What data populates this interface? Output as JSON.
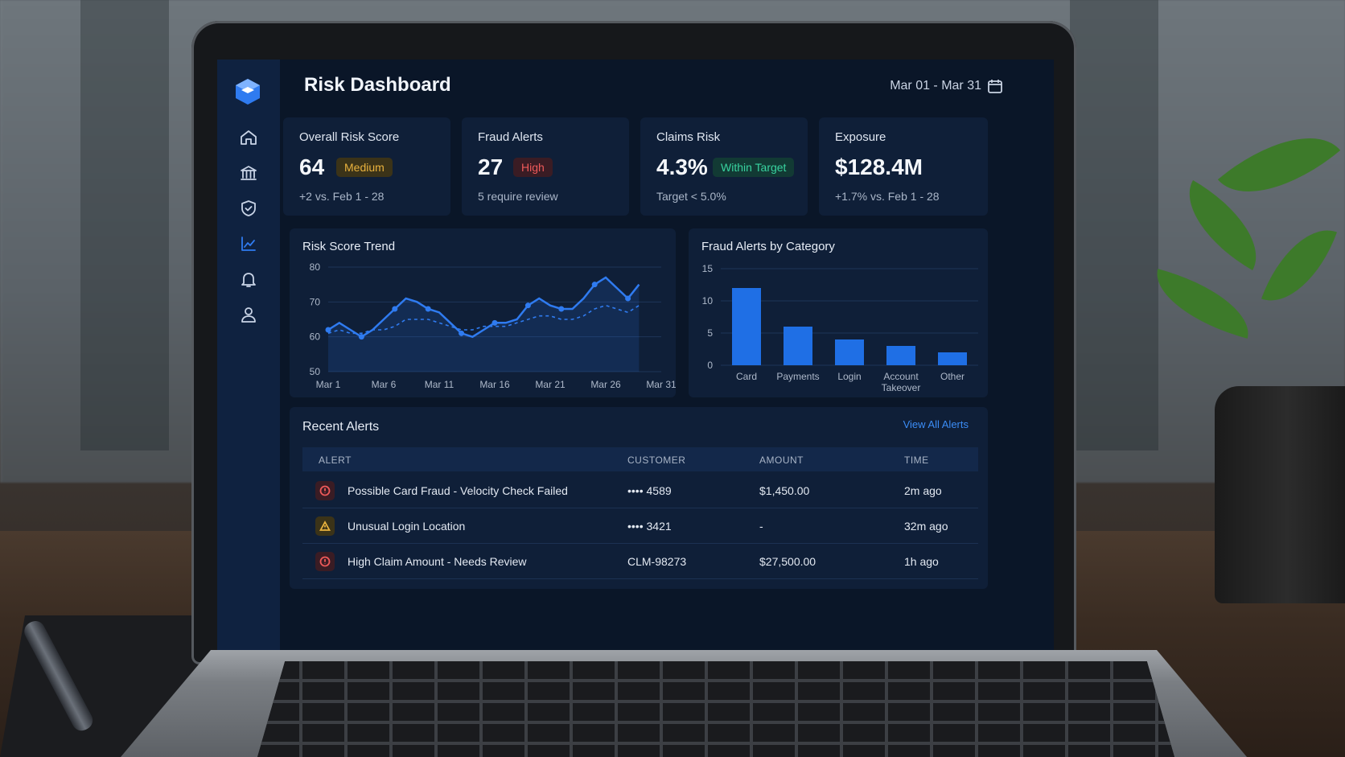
{
  "header": {
    "title": "Risk Dashboard",
    "date_range": "Mar 01 - Mar 31"
  },
  "sidebar": {
    "items": [
      {
        "icon": "home-icon"
      },
      {
        "icon": "bank-icon"
      },
      {
        "icon": "shield-icon"
      },
      {
        "icon": "chart-icon",
        "active": true
      },
      {
        "icon": "bell-icon"
      },
      {
        "icon": "user-icon"
      }
    ]
  },
  "kpis": [
    {
      "label": "Overall Risk Score",
      "value": "64",
      "badge": "Medium",
      "sub": "+2 vs. Feb 1 - 28"
    },
    {
      "label": "Fraud Alerts",
      "value": "27",
      "badge": "High",
      "sub": "5 require review"
    },
    {
      "label": "Claims Risk",
      "value": "4.3%",
      "badge": "Within Target",
      "sub": "Target < 5.0%"
    },
    {
      "label": "Exposure",
      "value": "$128.4M",
      "badge": "",
      "sub": "+1.7% vs. Feb 1 - 28"
    }
  ],
  "colors": {
    "accent": "#2f7bf0",
    "medium": "#e9b23e",
    "high": "#ef5a5a",
    "ok": "#38d39f"
  },
  "chart_data": [
    {
      "type": "line",
      "title": "Risk Score Trend",
      "x": [
        1,
        2,
        3,
        4,
        5,
        6,
        7,
        8,
        9,
        10,
        11,
        12,
        13,
        14,
        15,
        16,
        17,
        18,
        19,
        20,
        21,
        22,
        23,
        24,
        25,
        26,
        27,
        28,
        29,
        30,
        31
      ],
      "xticks": [
        "Mar 1",
        "Mar 6",
        "Mar 11",
        "Mar 16",
        "Mar 21",
        "Mar 26",
        "Mar 31"
      ],
      "series": [
        {
          "style": "solid",
          "values": [
            62,
            64,
            62,
            60,
            62,
            65,
            68,
            71,
            70,
            68,
            67,
            64,
            61,
            60,
            62,
            64,
            64,
            65,
            69,
            71,
            69,
            68,
            68,
            71,
            75,
            77,
            74,
            71,
            75,
            null,
            null
          ]
        },
        {
          "style": "dashed",
          "values": [
            61,
            62,
            61,
            61,
            62,
            62,
            63,
            65,
            65,
            65,
            64,
            63,
            62,
            62,
            63,
            63,
            63,
            64,
            65,
            66,
            66,
            65,
            65,
            66,
            68,
            69,
            68,
            67,
            69,
            null,
            null
          ]
        }
      ],
      "ylim": [
        50,
        80
      ],
      "yticks": [
        50,
        60,
        70,
        80
      ]
    },
    {
      "type": "bar",
      "title": "Fraud Alerts by Category",
      "categories": [
        "Card",
        "Payments",
        "Login",
        "Account Takeover",
        "Other"
      ],
      "values": [
        12,
        6,
        4,
        3,
        2
      ],
      "ylim": [
        0,
        15
      ],
      "yticks": [
        0,
        5,
        10,
        15
      ]
    }
  ],
  "alerts": {
    "title": "Recent Alerts",
    "view_all": "View All Alerts",
    "columns": [
      "ALERT",
      "CUSTOMER",
      "AMOUNT",
      "TIME"
    ],
    "rows": [
      {
        "severity": "high",
        "icon": "alert-circle-icon",
        "alert": "Possible Card Fraud - Velocity Check Failed",
        "customer": "•••• 4589",
        "amount": "$1,450.00",
        "time": "2m ago"
      },
      {
        "severity": "medium",
        "icon": "warning-icon",
        "alert": "Unusual Login Location",
        "customer": "•••• 3421",
        "amount": "-",
        "time": "32m ago"
      },
      {
        "severity": "high",
        "icon": "alert-circle-icon",
        "alert": "High Claim Amount - Needs Review",
        "customer": "CLM-98273",
        "amount": "$27,500.00",
        "time": "1h ago"
      }
    ]
  }
}
